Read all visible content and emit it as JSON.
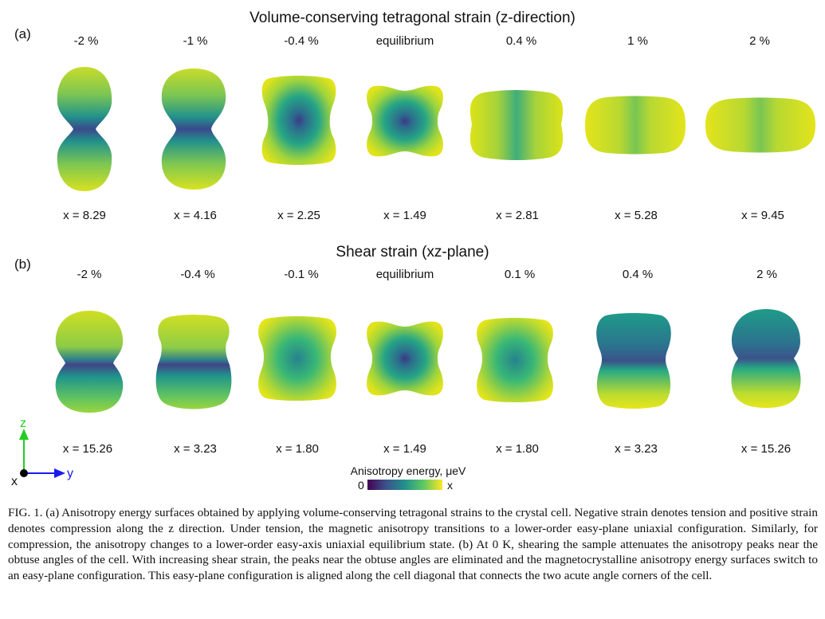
{
  "panel_a": {
    "label": "(a)",
    "title": "Volume-conserving tetragonal strain (z-direction)",
    "columns": [
      "-2 %",
      "-1 %",
      "-0.4 %",
      "equilibrium",
      "0.4 %",
      "1 %",
      "2 %"
    ],
    "x_values": [
      "x = 8.29",
      "x = 4.16",
      "x = 2.25",
      "x = 1.49",
      "x = 2.81",
      "x = 5.28",
      "x = 9.45"
    ]
  },
  "panel_b": {
    "label": "(b)",
    "title": "Shear strain (xz-plane)",
    "columns": [
      "-2 %",
      "-0.4 %",
      "-0.1 %",
      "equilibrium",
      "0.1 %",
      "0.4 %",
      "2 %"
    ],
    "x_values": [
      "x = 15.26",
      "x = 3.23",
      "x = 1.80",
      "x = 1.49",
      "x = 1.80",
      "x = 3.23",
      "x = 15.26"
    ]
  },
  "axes": {
    "z": "z",
    "y": "y",
    "x": "x",
    "z_color": "#22cc22",
    "y_color": "#1a1aee"
  },
  "colorbar": {
    "title": "Anisotropy energy, μeV",
    "min": "0",
    "max": "x",
    "colormap": "viridis"
  },
  "caption": {
    "label": "FIG. 1.",
    "text": "(a) Anisotropy energy surfaces obtained by applying volume-conserving tetragonal strains to the crystal cell. Negative strain denotes tension and positive strain denotes compression along the z direction. Under tension, the magnetic anisotropy transitions to a lower-order easy-plane uniaxial configuration. Similarly, for compression, the anisotropy changes to a lower-order easy-axis uniaxial equilibrium state. (b) At 0 K, shearing the sample attenuates the anisotropy peaks near the obtuse angles of the cell. With increasing shear strain, the peaks near the obtuse angles are eliminated and the magnetocrystalline anisotropy energy surfaces switch to an easy-plane configuration. This easy-plane configuration is aligned along the cell diagonal that connects the two acute angle corners of the cell."
  }
}
